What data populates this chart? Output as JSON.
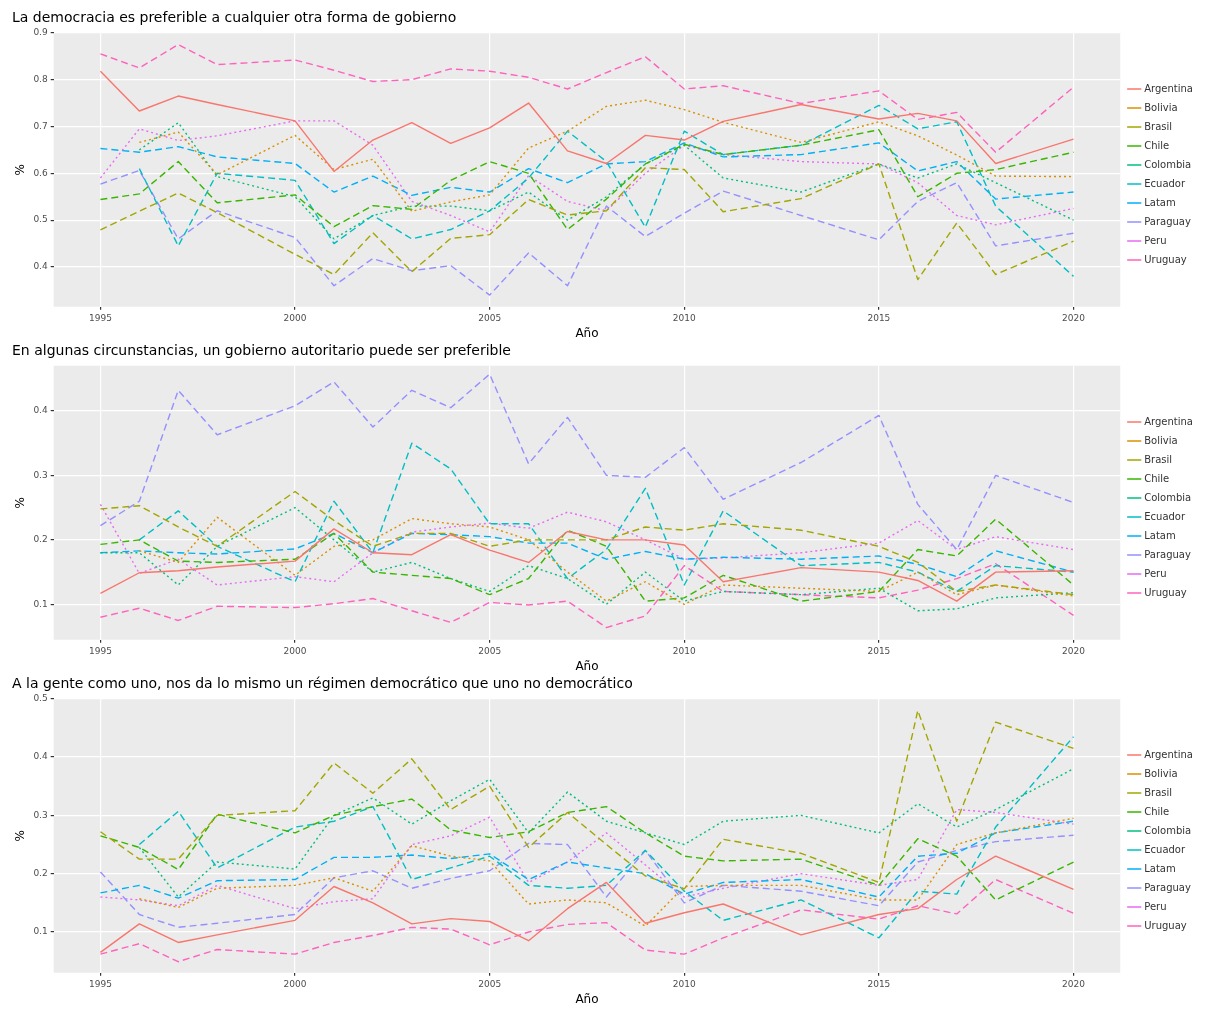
{
  "chart_data": [
    {
      "type": "line",
      "title": "La democracia es preferible a cualquier otra forma de gobierno",
      "xlabel": "Año",
      "ylabel": "%",
      "x": [
        1995,
        1996,
        1997,
        1998,
        2000,
        2001,
        2002,
        2003,
        2004,
        2005,
        2006,
        2007,
        2008,
        2009,
        2010,
        2011,
        2013,
        2015,
        2016,
        2017,
        2018,
        2020
      ],
      "xlim": [
        1993.8,
        2021.2
      ],
      "xticks": [
        1995,
        2000,
        2005,
        2010,
        2015,
        2020
      ],
      "ylim": [
        0.315,
        0.9
      ],
      "yticks": [
        0.4,
        0.5,
        0.6,
        0.7,
        0.8,
        0.9
      ],
      "grid": true,
      "legend": "right",
      "series": [
        {
          "name": "Argentina",
          "color": "#f8766d",
          "line_style": "solid",
          "values": [
            0.818,
            0.733,
            0.765,
            0.747,
            0.712,
            0.604,
            0.671,
            0.708,
            0.664,
            0.697,
            0.75,
            0.648,
            0.621,
            0.681,
            0.671,
            0.711,
            0.747,
            0.716,
            0.728,
            0.712,
            0.621,
            0.673
          ]
        },
        {
          "name": "Bolivia",
          "color": "#d89000",
          "line_style": "dotted",
          "values": [
            null,
            0.666,
            0.688,
            0.597,
            0.681,
            0.608,
            0.63,
            0.519,
            0.539,
            0.554,
            0.654,
            0.69,
            0.743,
            0.756,
            0.736,
            0.709,
            0.666,
            0.71,
            0.68,
            0.639,
            0.594,
            0.593
          ]
        },
        {
          "name": "Brasil",
          "color": "#a3a500",
          "line_style": "dashed",
          "values": [
            0.479,
            0.519,
            0.558,
            0.516,
            0.427,
            0.384,
            0.473,
            0.39,
            0.461,
            0.469,
            0.544,
            0.511,
            0.52,
            0.612,
            0.608,
            0.518,
            0.546,
            0.62,
            0.373,
            0.494,
            0.384,
            0.455
          ]
        },
        {
          "name": "Chile",
          "color": "#39b600",
          "line_style": "dashed",
          "values": [
            0.544,
            0.556,
            0.625,
            0.537,
            0.554,
            0.486,
            0.531,
            0.523,
            0.585,
            0.625,
            0.6,
            0.48,
            0.545,
            0.62,
            0.662,
            0.64,
            0.66,
            0.693,
            0.55,
            0.6,
            0.608,
            0.645
          ]
        },
        {
          "name": "Colombia",
          "color": "#00bf7d",
          "line_style": "dotted",
          "values": [
            null,
            0.65,
            0.708,
            0.593,
            0.55,
            0.46,
            0.51,
            0.53,
            0.53,
            0.52,
            0.56,
            0.5,
            0.55,
            0.62,
            0.66,
            0.59,
            0.56,
            0.62,
            0.59,
            0.62,
            0.58,
            0.5
          ]
        },
        {
          "name": "Ecuador",
          "color": "#00bfc4",
          "line_style": "dashed",
          "values": [
            null,
            0.61,
            0.445,
            0.6,
            0.585,
            0.45,
            0.51,
            0.46,
            0.48,
            0.52,
            0.59,
            0.69,
            0.625,
            0.485,
            0.69,
            0.64,
            0.66,
            0.745,
            0.695,
            0.71,
            0.53,
            0.38
          ]
        },
        {
          "name": "Latam",
          "color": "#00b0f6",
          "line_style": "dashed",
          "values": [
            0.653,
            0.645,
            0.657,
            0.635,
            0.621,
            0.56,
            0.594,
            0.553,
            0.57,
            0.56,
            0.61,
            0.58,
            0.62,
            0.625,
            0.665,
            0.635,
            0.64,
            0.665,
            0.605,
            0.625,
            0.545,
            0.56
          ]
        },
        {
          "name": "Paraguay",
          "color": "#9590ff",
          "line_style": "dashed",
          "values": [
            0.577,
            0.606,
            0.46,
            0.52,
            0.463,
            0.36,
            0.418,
            0.392,
            0.403,
            0.34,
            0.43,
            0.36,
            0.53,
            0.465,
            0.515,
            0.562,
            0.51,
            0.458,
            0.54,
            0.58,
            0.445,
            0.472
          ]
        },
        {
          "name": "Peru",
          "color": "#e76bf3",
          "line_style": "dotted",
          "values": [
            0.59,
            0.695,
            0.67,
            0.68,
            0.712,
            0.712,
            0.66,
            0.54,
            0.51,
            0.475,
            0.595,
            0.54,
            0.52,
            0.6,
            0.66,
            0.64,
            0.625,
            0.62,
            0.58,
            0.51,
            0.49,
            0.525
          ]
        },
        {
          "name": "Uruguay",
          "color": "#ff62bc",
          "line_style": "dashed",
          "values": [
            0.855,
            0.825,
            0.875,
            0.832,
            0.842,
            0.82,
            0.796,
            0.8,
            0.823,
            0.818,
            0.805,
            0.78,
            0.815,
            0.849,
            0.78,
            0.787,
            0.749,
            0.776,
            0.715,
            0.73,
            0.645,
            0.784
          ]
        }
      ]
    },
    {
      "type": "line",
      "title": "En algunas circunstancias, un gobierno autoritario puede ser preferible",
      "xlabel": "Año",
      "ylabel": "%",
      "x": [
        1995,
        1996,
        1997,
        1998,
        2000,
        2001,
        2002,
        2003,
        2004,
        2005,
        2006,
        2007,
        2008,
        2009,
        2010,
        2011,
        2013,
        2015,
        2016,
        2017,
        2018,
        2020
      ],
      "xlim": [
        1993.8,
        2021.2
      ],
      "xticks": [
        1995,
        2000,
        2005,
        2010,
        2015,
        2020
      ],
      "ylim": [
        0.045,
        0.47
      ],
      "yticks": [
        0.1,
        0.2,
        0.3,
        0.4
      ],
      "grid": true,
      "legend": "right",
      "series": [
        {
          "name": "Argentina",
          "color": "#f8766d",
          "line_style": "solid",
          "values": [
            0.117,
            0.149,
            0.152,
            0.158,
            0.167,
            0.217,
            0.18,
            0.177,
            0.208,
            0.184,
            0.165,
            0.213,
            0.2,
            0.2,
            0.192,
            0.135,
            0.157,
            0.15,
            0.137,
            0.105,
            0.15,
            0.152
          ]
        },
        {
          "name": "Bolivia",
          "color": "#d89000",
          "line_style": "dotted",
          "values": [
            null,
            0.183,
            0.165,
            0.235,
            0.145,
            0.19,
            0.2,
            0.233,
            0.225,
            0.22,
            0.2,
            0.15,
            0.105,
            0.135,
            0.1,
            0.13,
            0.125,
            0.12,
            0.15,
            0.115,
            0.13,
            0.113
          ]
        },
        {
          "name": "Brasil",
          "color": "#a3a500",
          "line_style": "dashed",
          "values": [
            0.248,
            0.253,
            0.22,
            0.19,
            0.275,
            0.23,
            0.19,
            0.21,
            0.21,
            0.19,
            0.2,
            0.2,
            0.2,
            0.22,
            0.215,
            0.225,
            0.215,
            0.19,
            0.165,
            0.12,
            0.13,
            0.115
          ]
        },
        {
          "name": "Chile",
          "color": "#39b600",
          "line_style": "dashed",
          "values": [
            0.193,
            0.2,
            0.167,
            0.165,
            0.17,
            0.21,
            0.15,
            0.145,
            0.14,
            0.115,
            0.14,
            0.215,
            0.19,
            0.105,
            0.11,
            0.145,
            0.105,
            0.12,
            0.185,
            0.175,
            0.232,
            0.13
          ]
        },
        {
          "name": "Colombia",
          "color": "#00bf7d",
          "line_style": "dotted",
          "values": [
            0.18,
            0.18,
            0.13,
            0.19,
            0.25,
            0.2,
            0.15,
            0.165,
            0.14,
            0.12,
            0.16,
            0.14,
            0.1,
            0.15,
            0.105,
            0.12,
            0.115,
            0.125,
            0.09,
            0.093,
            0.11,
            0.118
          ]
        },
        {
          "name": "Ecuador",
          "color": "#00bfc4",
          "line_style": "dashed",
          "values": [
            null,
            0.2,
            0.245,
            0.19,
            0.135,
            0.26,
            0.18,
            0.35,
            0.31,
            0.225,
            0.225,
            0.14,
            0.185,
            0.28,
            0.13,
            0.245,
            0.16,
            0.165,
            0.15,
            0.12,
            0.16,
            0.15
          ]
        },
        {
          "name": "Latam",
          "color": "#00b0f6",
          "line_style": "dashed",
          "values": [
            0.18,
            0.183,
            0.18,
            0.178,
            0.186,
            0.21,
            0.18,
            0.21,
            0.208,
            0.205,
            0.195,
            0.195,
            0.17,
            0.182,
            0.17,
            0.173,
            0.17,
            0.175,
            0.162,
            0.143,
            0.183,
            0.15
          ]
        },
        {
          "name": "Paraguay",
          "color": "#9590ff",
          "line_style": "dashed",
          "values": [
            0.222,
            0.26,
            0.432,
            0.363,
            0.408,
            0.445,
            0.375,
            0.432,
            0.405,
            0.457,
            0.318,
            0.39,
            0.3,
            0.297,
            0.343,
            0.263,
            0.32,
            0.393,
            0.255,
            0.185,
            0.3,
            0.258
          ]
        },
        {
          "name": "Peru",
          "color": "#e76bf3",
          "line_style": "dotted",
          "values": [
            0.255,
            0.148,
            0.17,
            0.13,
            0.143,
            0.135,
            0.18,
            0.212,
            0.22,
            0.226,
            0.218,
            0.243,
            0.228,
            0.2,
            0.17,
            0.172,
            0.18,
            0.195,
            0.23,
            0.185,
            0.205,
            0.185
          ]
        },
        {
          "name": "Uruguay",
          "color": "#ff62bc",
          "line_style": "dashed",
          "values": [
            0.08,
            0.094,
            0.075,
            0.097,
            0.095,
            0.101,
            0.109,
            0.09,
            0.072,
            0.103,
            0.099,
            0.105,
            0.064,
            0.082,
            0.16,
            0.12,
            0.115,
            0.11,
            0.122,
            0.14,
            0.163,
            0.083
          ]
        }
      ]
    },
    {
      "type": "line",
      "title": "A la gente como uno, nos da lo mismo un régimen democrático que uno no democrático",
      "xlabel": "Año",
      "ylabel": "%",
      "x": [
        1995,
        1996,
        1997,
        1998,
        2000,
        2001,
        2002,
        2003,
        2004,
        2005,
        2006,
        2007,
        2008,
        2009,
        2010,
        2011,
        2013,
        2015,
        2016,
        2017,
        2018,
        2020
      ],
      "xlim": [
        1993.8,
        2021.2
      ],
      "xticks": [
        1995,
        2000,
        2005,
        2010,
        2015,
        2020
      ],
      "ylim": [
        0.03,
        0.5
      ],
      "yticks": [
        0.1,
        0.2,
        0.3,
        0.4,
        0.5
      ],
      "grid": true,
      "legend": "right",
      "series": [
        {
          "name": "Argentina",
          "color": "#f8766d",
          "line_style": "solid",
          "values": [
            0.065,
            0.114,
            0.082,
            0.095,
            0.12,
            0.178,
            0.15,
            0.114,
            0.123,
            0.118,
            0.085,
            0.14,
            0.185,
            0.115,
            0.133,
            0.148,
            0.095,
            0.13,
            0.14,
            0.19,
            0.23,
            0.173
          ]
        },
        {
          "name": "Bolivia",
          "color": "#d89000",
          "line_style": "dotted",
          "values": [
            null,
            0.157,
            0.142,
            0.175,
            0.18,
            0.193,
            0.17,
            0.248,
            0.23,
            0.222,
            0.148,
            0.155,
            0.15,
            0.11,
            0.178,
            0.18,
            0.18,
            0.155,
            0.155,
            0.25,
            0.27,
            0.295
          ]
        },
        {
          "name": "Brasil",
          "color": "#a3a500",
          "line_style": "dashed",
          "values": [
            0.272,
            0.225,
            0.225,
            0.3,
            0.308,
            0.39,
            0.338,
            0.397,
            0.31,
            0.35,
            0.245,
            0.305,
            0.25,
            0.196,
            0.174,
            0.259,
            0.235,
            0.185,
            0.48,
            0.29,
            0.46,
            0.415
          ]
        },
        {
          "name": "Chile",
          "color": "#39b600",
          "line_style": "dashed",
          "values": [
            0.265,
            0.245,
            0.207,
            0.302,
            0.27,
            0.3,
            0.315,
            0.328,
            0.275,
            0.262,
            0.272,
            0.305,
            0.315,
            0.27,
            0.23,
            0.222,
            0.225,
            0.18,
            0.26,
            0.23,
            0.155,
            0.22
          ]
        },
        {
          "name": "Colombia",
          "color": "#00bf7d",
          "line_style": "dotted",
          "values": [
            null,
            0.245,
            0.16,
            0.22,
            0.208,
            0.3,
            0.33,
            0.285,
            0.325,
            0.362,
            0.27,
            0.34,
            0.29,
            0.27,
            0.25,
            0.29,
            0.3,
            0.27,
            0.32,
            0.28,
            0.31,
            0.38
          ]
        },
        {
          "name": "Ecuador",
          "color": "#00bfc4",
          "line_style": "dashed",
          "values": [
            null,
            0.25,
            0.307,
            0.21,
            0.28,
            0.29,
            0.315,
            0.19,
            0.21,
            0.23,
            0.18,
            0.175,
            0.18,
            0.24,
            0.17,
            0.12,
            0.155,
            0.09,
            0.17,
            0.165,
            0.28,
            0.435
          ]
        },
        {
          "name": "Latam",
          "color": "#00b0f6",
          "line_style": "dashed",
          "values": [
            0.167,
            0.18,
            0.158,
            0.188,
            0.19,
            0.228,
            0.228,
            0.232,
            0.226,
            0.234,
            0.19,
            0.22,
            0.21,
            0.2,
            0.165,
            0.185,
            0.19,
            0.16,
            0.23,
            0.235,
            0.27,
            0.29
          ]
        },
        {
          "name": "Paraguay",
          "color": "#9590ff",
          "line_style": "dashed",
          "values": [
            0.203,
            0.13,
            0.108,
            0.115,
            0.13,
            0.193,
            0.205,
            0.175,
            0.192,
            0.205,
            0.252,
            0.25,
            0.16,
            0.24,
            0.15,
            0.18,
            0.17,
            0.145,
            0.22,
            0.24,
            0.255,
            0.266
          ]
        },
        {
          "name": "Peru",
          "color": "#e76bf3",
          "line_style": "dotted",
          "values": [
            0.16,
            0.155,
            0.145,
            0.18,
            0.14,
            0.152,
            0.157,
            0.25,
            0.265,
            0.297,
            0.185,
            0.22,
            0.27,
            0.215,
            0.16,
            0.175,
            0.2,
            0.18,
            0.19,
            0.31,
            0.305,
            0.285
          ]
        },
        {
          "name": "Uruguay",
          "color": "#ff62bc",
          "line_style": "dashed",
          "values": [
            0.062,
            0.08,
            0.049,
            0.07,
            0.062,
            0.082,
            0.094,
            0.108,
            0.105,
            0.078,
            0.1,
            0.113,
            0.116,
            0.069,
            0.062,
            0.09,
            0.138,
            0.122,
            0.145,
            0.131,
            0.19,
            0.132
          ]
        }
      ]
    }
  ]
}
